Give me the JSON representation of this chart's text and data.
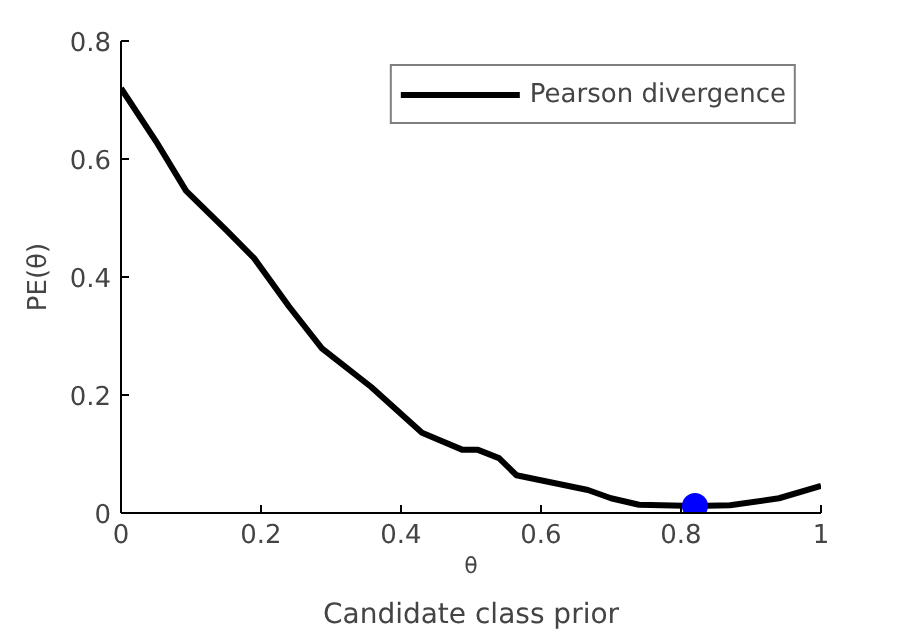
{
  "chart_data": {
    "type": "line",
    "xlabel": "θ",
    "ylabel": "PE(θ)",
    "annotations": [
      "Candidate class prior"
    ],
    "xlim": [
      0,
      1
    ],
    "ylim": [
      0,
      0.8
    ],
    "xticks": [
      0,
      0.2,
      0.4,
      0.6,
      0.8,
      1
    ],
    "yticks": [
      0,
      0.2,
      0.4,
      0.6,
      0.8
    ],
    "grid": false,
    "legend": "top right",
    "series": [
      {
        "name": "Pearson divergence",
        "color": "#000000",
        "x": [
          0,
          0.05,
          0.093,
          0.15,
          0.19,
          0.24,
          0.287,
          0.357,
          0.43,
          0.488,
          0.51,
          0.54,
          0.565,
          0.667,
          0.7,
          0.74,
          0.82,
          0.87,
          0.94,
          1.0
        ],
        "values": [
          0.72,
          0.63,
          0.546,
          0.48,
          0.432,
          0.35,
          0.279,
          0.214,
          0.136,
          0.107,
          0.107,
          0.093,
          0.064,
          0.039,
          0.025,
          0.014,
          0.012,
          0.013,
          0.025,
          0.046
        ]
      },
      {
        "type": "scatter",
        "color": "#0000ff",
        "marker": "circle",
        "x": [
          0.82
        ],
        "values": [
          0.012
        ]
      }
    ]
  }
}
